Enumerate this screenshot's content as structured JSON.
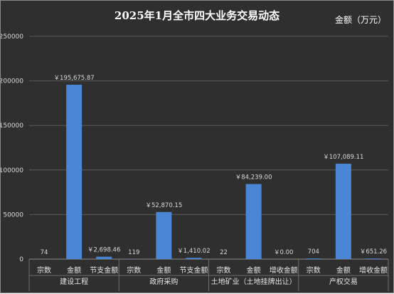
{
  "chart_data": {
    "type": "bar",
    "title": "2025年1月全市四大业务交易动态",
    "unit_label": "金额（万元）",
    "ylim": [
      0,
      250000
    ],
    "yticks": [
      0,
      50000,
      100000,
      150000,
      200000,
      250000
    ],
    "grid": true,
    "bar_color": "#4a86d4",
    "groups": [
      {
        "name": "建设工程",
        "categories": [
          "宗数",
          "金额",
          "节支金额"
        ],
        "values": [
          74,
          195675.87,
          2698.46
        ],
        "labels": [
          "74",
          "￥195,675.87",
          "￥2,698.46"
        ]
      },
      {
        "name": "政府采购",
        "categories": [
          "宗数",
          "金额",
          "节支金额"
        ],
        "values": [
          119,
          52870.15,
          1410.02
        ],
        "labels": [
          "119",
          "￥52,870.15",
          "￥1,410.02"
        ]
      },
      {
        "name": "土地矿业（土地挂牌出让）",
        "categories": [
          "宗数",
          "金额",
          "增收金额"
        ],
        "values": [
          22,
          84239.0,
          0.0
        ],
        "labels": [
          "22",
          "￥84,239.00",
          "￥0.00"
        ]
      },
      {
        "name": "产权交易",
        "categories": [
          "宗数",
          "金额",
          "增收金额"
        ],
        "values": [
          704,
          107089.11,
          651.26
        ],
        "labels": [
          "704",
          "￥107,089.11",
          "￥651.26"
        ]
      }
    ]
  }
}
